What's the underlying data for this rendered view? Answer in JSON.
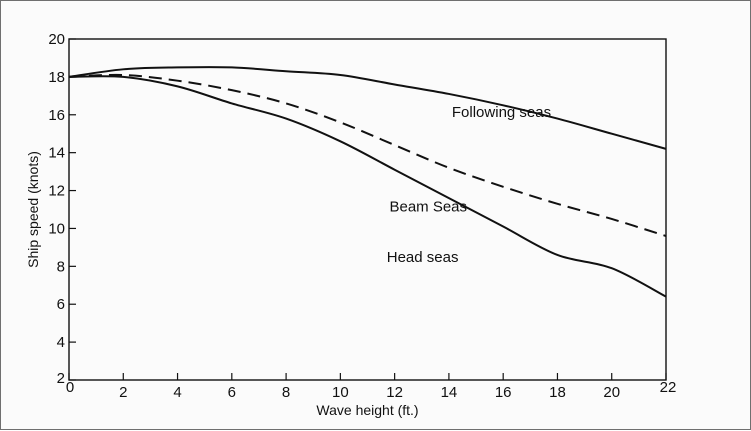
{
  "chart_data": {
    "type": "line",
    "title": "",
    "xlabel": "Wave height (ft.)",
    "ylabel": "Ship speed (knots)",
    "xlim": [
      0,
      22
    ],
    "ylim": [
      2,
      20
    ],
    "xticks": [
      0,
      2,
      4,
      6,
      8,
      10,
      12,
      14,
      16,
      18,
      20,
      22
    ],
    "yticks": [
      2,
      4,
      6,
      8,
      10,
      12,
      14,
      16,
      18,
      20
    ],
    "grid": false,
    "legend": "inline labels",
    "series": [
      {
        "name": "Following seas",
        "style": "solid",
        "x": [
          0,
          2,
          4,
          6,
          8,
          10,
          12,
          14,
          16,
          18,
          20,
          22
        ],
        "y": [
          18.0,
          18.4,
          18.5,
          18.5,
          18.3,
          18.1,
          17.6,
          17.1,
          16.5,
          15.8,
          15.0,
          14.2
        ]
      },
      {
        "name": "Beam Seas",
        "style": "dashed",
        "x": [
          0,
          2,
          4,
          6,
          8,
          10,
          12,
          14,
          16,
          18,
          20,
          22
        ],
        "y": [
          18.0,
          18.1,
          17.8,
          17.3,
          16.6,
          15.6,
          14.4,
          13.2,
          12.2,
          11.3,
          10.5,
          9.6
        ]
      },
      {
        "name": "Head seas",
        "style": "solid",
        "x": [
          0,
          2,
          4,
          6,
          8,
          10,
          12,
          14,
          16,
          18,
          20,
          22
        ],
        "y": [
          18.0,
          18.0,
          17.5,
          16.6,
          15.8,
          14.6,
          13.1,
          11.6,
          10.1,
          8.6,
          7.9,
          6.4
        ]
      }
    ],
    "color": "#111111"
  }
}
